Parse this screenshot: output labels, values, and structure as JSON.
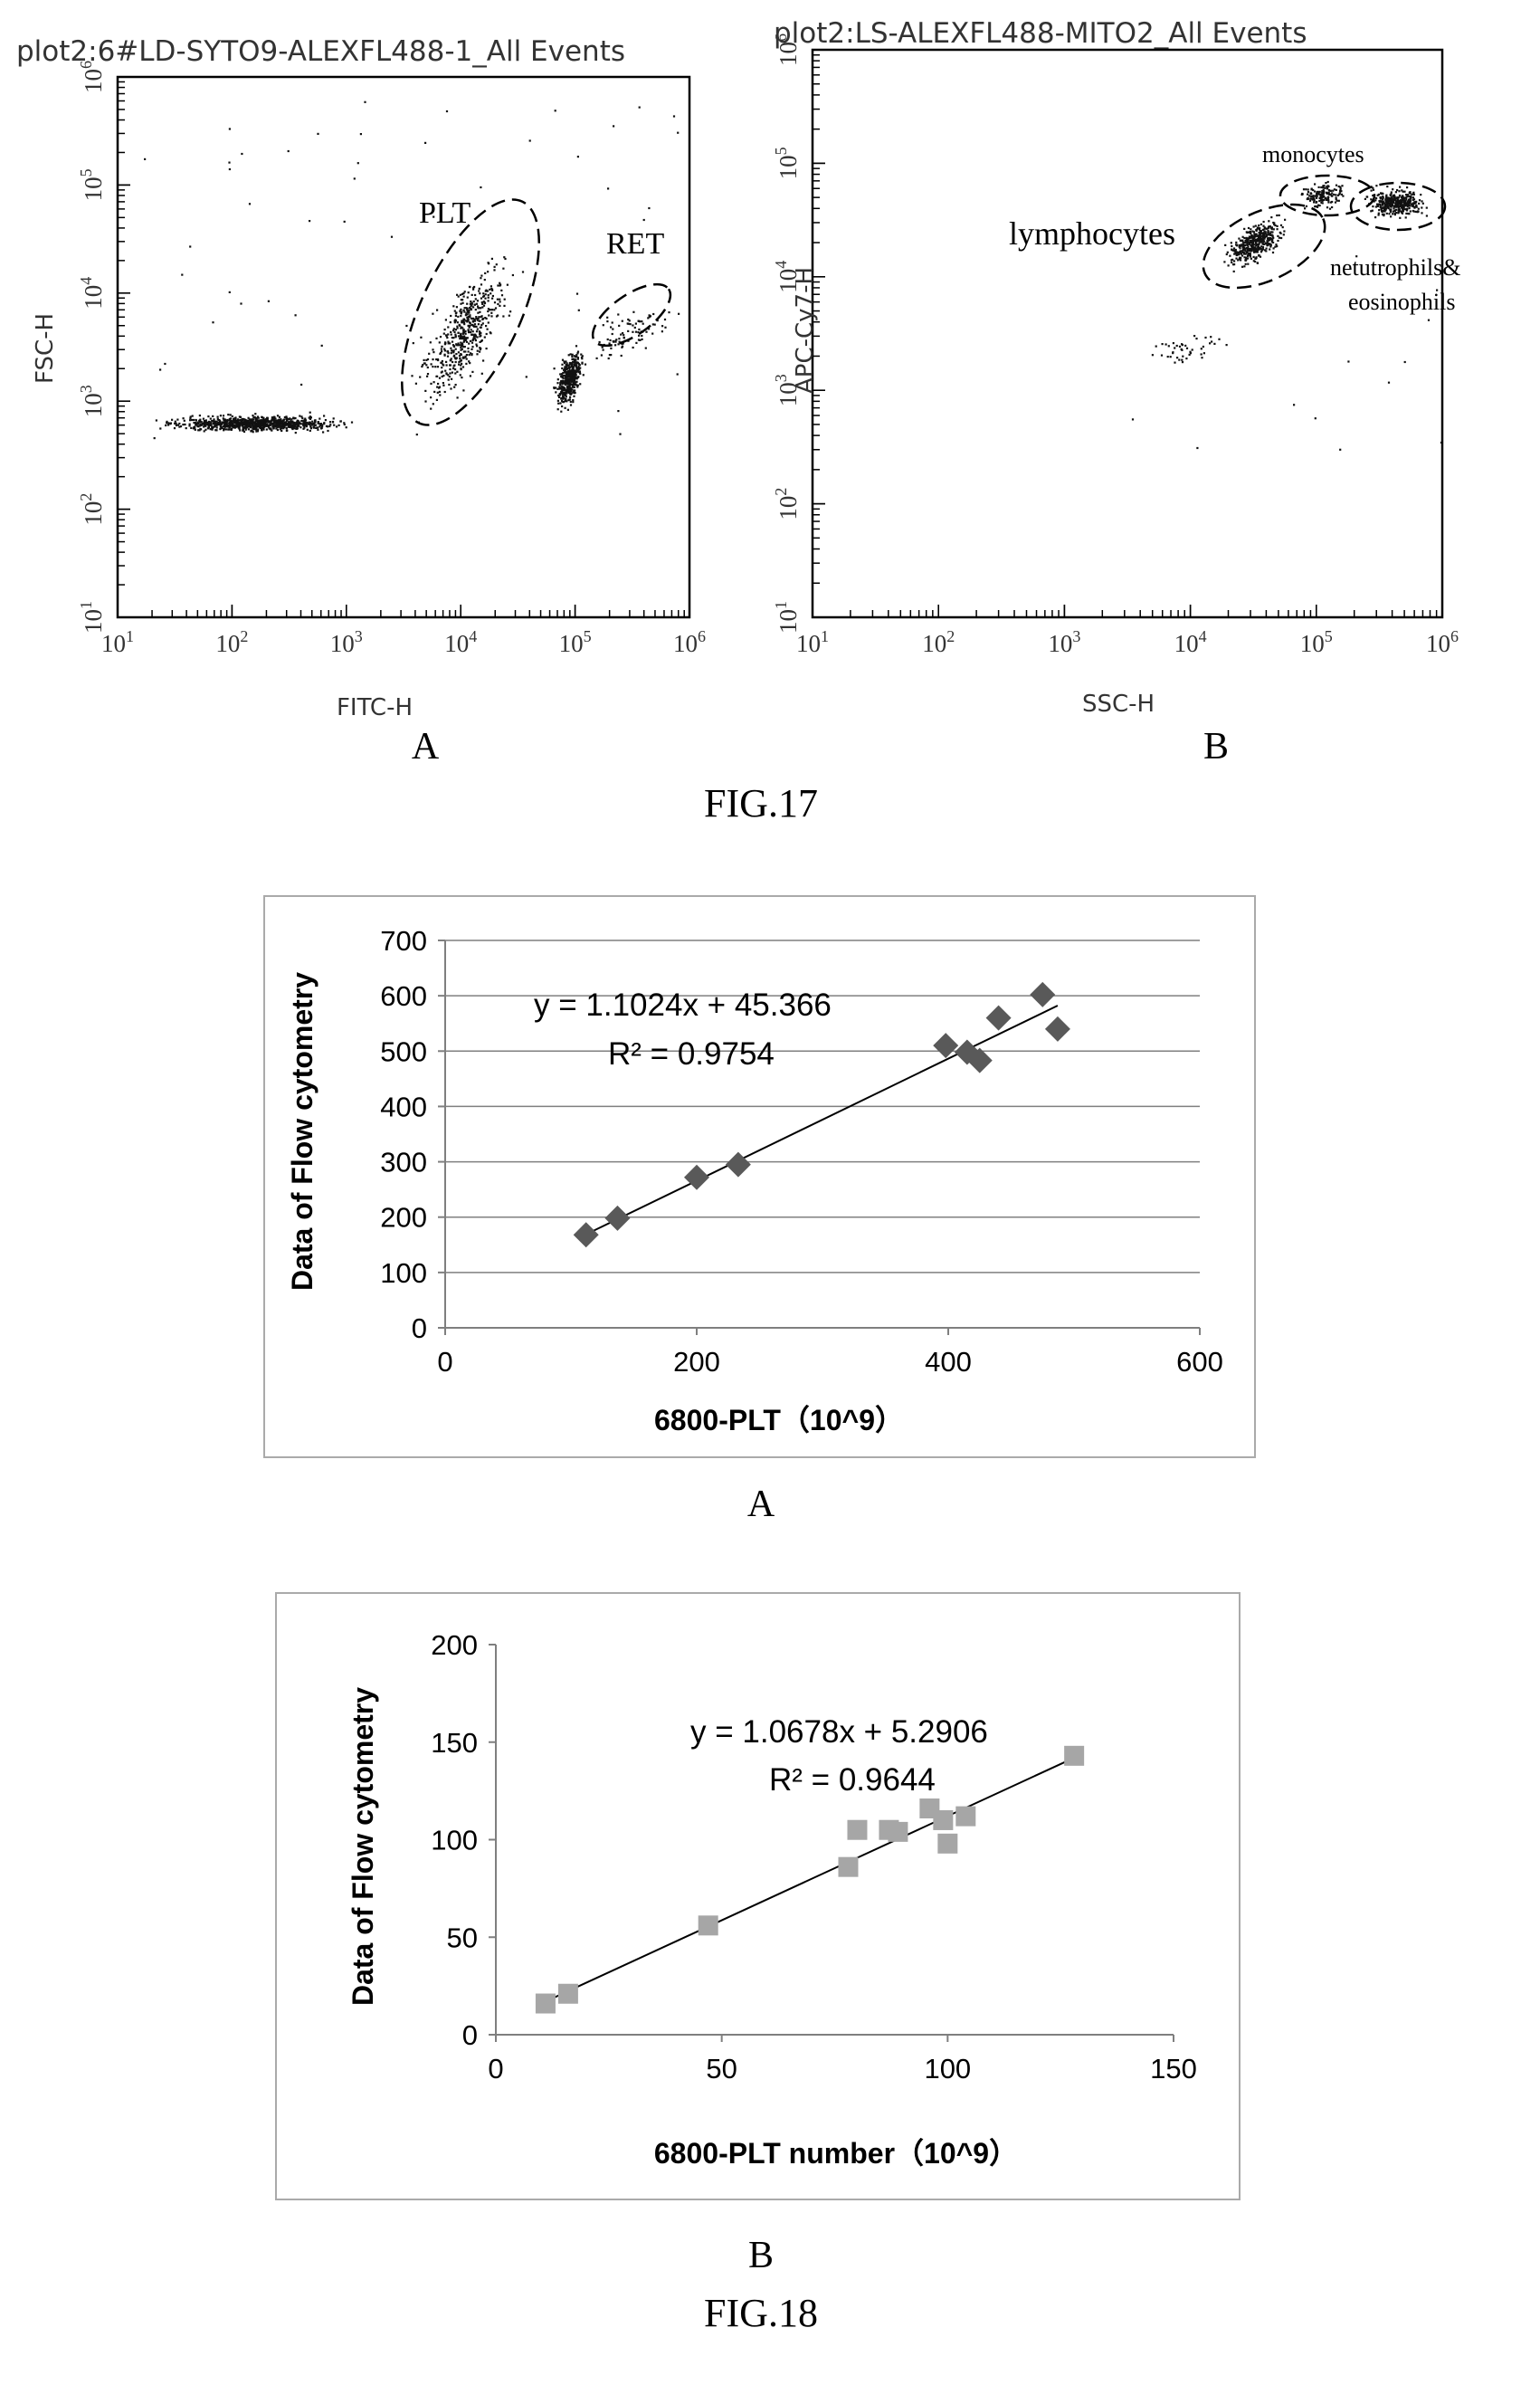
{
  "fig17": {
    "caption": "FIG.17",
    "panelA": {
      "panel_label": "A",
      "title": "plot2:6#LD-SYTO9-ALEXFL488-1_All Events",
      "xlabel": "FITC-H",
      "ylabel": "FSC-H",
      "x_ticks": [
        "10",
        "10",
        "10",
        "10",
        "10",
        "10"
      ],
      "x_exps": [
        "1",
        "2",
        "3",
        "4",
        "5",
        "6"
      ],
      "y_ticks": [
        "10",
        "10",
        "10",
        "10",
        "10",
        "10"
      ],
      "y_exps": [
        "1",
        "2",
        "3",
        "4",
        "5",
        "6"
      ],
      "gates": [
        {
          "name": "PLT",
          "label": "PLT"
        },
        {
          "name": "RET",
          "label": "RET"
        }
      ]
    },
    "panelB": {
      "panel_label": "B",
      "title": "plot2:LS-ALEXFL488-MITO2_All Events",
      "xlabel": "SSC-H",
      "ylabel": "APC-Cy7-H",
      "x_ticks": [
        "10",
        "10",
        "10",
        "10",
        "10",
        "10"
      ],
      "x_exps": [
        "1",
        "2",
        "3",
        "4",
        "5",
        "6"
      ],
      "y_ticks": [
        "10",
        "10",
        "10",
        "10",
        "10",
        "10"
      ],
      "y_exps": [
        "1",
        "2",
        "3",
        "4",
        "5",
        "6"
      ],
      "gates": [
        {
          "name": "lymphocytes",
          "label": "lymphocytes"
        },
        {
          "name": "monocytes",
          "label": "monocytes"
        },
        {
          "name": "neutrophils",
          "label_line1": "netutrophils&",
          "label_line2": "eosinophils"
        }
      ]
    }
  },
  "fig18": {
    "caption": "FIG.18",
    "panelA": {
      "panel_label": "A",
      "equation": "y = 1.1024x + 45.366",
      "r2": "R² = 0.9754",
      "marker_color": "#595959",
      "line_color": "#000000"
    },
    "panelB": {
      "panel_label": "B",
      "equation": "y = 1.0678x + 5.2906",
      "r2": "R² = 0.9644",
      "marker_color": "#a6a6a6",
      "line_color": "#000000"
    }
  },
  "chart_data": [
    {
      "type": "scatter",
      "title": "plot2:6#LD-SYTO9-ALEXFL488-1_All Events",
      "xlabel": "FITC-H",
      "ylabel": "FSC-H",
      "x_scale": "log",
      "y_scale": "log",
      "xlim": [
        10,
        1000000
      ],
      "ylim": [
        10,
        1000000
      ],
      "populations": [
        {
          "name": "PLT",
          "x_range": [
            3000,
            40000
          ],
          "y_range": [
            500,
            40000
          ]
        },
        {
          "name": "RET",
          "x_range": [
            100000,
            900000
          ],
          "y_range": [
            2000,
            10000
          ]
        },
        {
          "name": "",
          "x_range": [
            12,
            2000
          ],
          "y_range": [
            500,
            800
          ]
        },
        {
          "name": "",
          "x_range": [
            60000,
            130000
          ],
          "y_range": [
            700,
            4000
          ]
        }
      ]
    },
    {
      "type": "scatter",
      "title": "plot2:LS-ALEXFL488-MITO2_All Events",
      "xlabel": "SSC-H",
      "ylabel": "APC-Cy7-H",
      "x_scale": "log",
      "y_scale": "log",
      "xlim": [
        10,
        1000000
      ],
      "ylim": [
        10,
        1000000
      ],
      "populations": [
        {
          "name": "lymphocytes",
          "x_range": [
            15000,
            70000
          ],
          "y_range": [
            10000,
            40000
          ]
        },
        {
          "name": "monocytes",
          "x_range": [
            60000,
            200000
          ],
          "y_range": [
            35000,
            80000
          ]
        },
        {
          "name": "netutrophils& eosinophils",
          "x_range": [
            200000,
            900000
          ],
          "y_range": [
            30000,
            70000
          ]
        },
        {
          "name": "",
          "x_range": [
            3000,
            30000
          ],
          "y_range": [
            1500,
            4000
          ]
        }
      ]
    },
    {
      "type": "scatter",
      "title": "",
      "xlabel": "6800-PLT（10^9）",
      "ylabel": "Data of Flow cytometry",
      "xlim": [
        0,
        600
      ],
      "ylim": [
        0,
        700
      ],
      "x_ticks": [
        0,
        200,
        400,
        600
      ],
      "y_ticks": [
        0,
        100,
        200,
        300,
        400,
        500,
        600,
        700
      ],
      "grid": true,
      "series": [
        {
          "x": [
            112,
            137,
            200,
            233,
            398,
            415,
            425,
            440,
            475,
            487
          ],
          "y": [
            168,
            198,
            272,
            295,
            510,
            498,
            483,
            560,
            602,
            540
          ]
        }
      ],
      "trendline": {
        "slope": 1.1024,
        "intercept": 45.366,
        "x_range": [
          112,
          487
        ],
        "r2": 0.9754
      }
    },
    {
      "type": "scatter",
      "title": "",
      "xlabel": "6800-PLT number（10^9）",
      "ylabel": "Data of Flow cytometry",
      "xlim": [
        0,
        150
      ],
      "ylim": [
        0,
        200
      ],
      "x_ticks": [
        0,
        50,
        100,
        150
      ],
      "y_ticks": [
        0,
        50,
        100,
        150,
        200
      ],
      "grid": false,
      "series": [
        {
          "x": [
            11,
            16,
            47,
            78,
            80,
            87,
            89,
            96,
            99,
            100,
            104,
            128
          ],
          "y": [
            16,
            21,
            56,
            86,
            105,
            105,
            104,
            116,
            110,
            98,
            112,
            143
          ]
        }
      ],
      "trendline": {
        "slope": 1.0678,
        "intercept": 5.2906,
        "x_range": [
          11,
          128
        ],
        "r2": 0.9644
      }
    }
  ]
}
